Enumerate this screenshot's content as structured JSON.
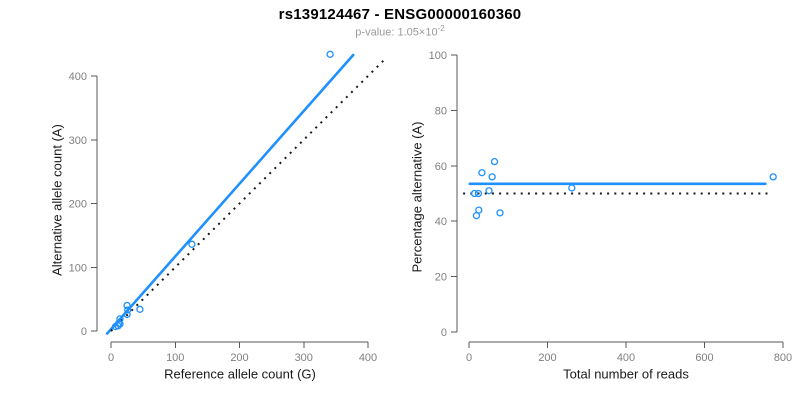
{
  "header": {
    "title": "rs139124467 - ENSG00000160360",
    "subtitle_prefix": "p-value: 1.05×10",
    "subtitle_exponent": "-2"
  },
  "colors": {
    "points": "#1E90FF",
    "fit_line": "#1E90FF",
    "reference_line": "#1a1a1a",
    "axis": "#5a5a5a",
    "tick_text": "#7f7f7f"
  },
  "chart_data": [
    {
      "id": "allele_counts",
      "type": "scatter",
      "xlabel": "Reference allele count (G)",
      "ylabel": "Alternative allele count (A)",
      "xticks": [
        0,
        100,
        200,
        300,
        400
      ],
      "yticks": [
        0,
        100,
        200,
        300,
        400
      ],
      "xlim": [
        0,
        430
      ],
      "ylim": [
        0,
        450
      ],
      "grid": false,
      "points": [
        [
          341,
          434
        ],
        [
          126,
          136
        ],
        [
          45,
          34
        ],
        [
          25,
          40
        ],
        [
          26,
          33
        ],
        [
          25,
          26
        ],
        [
          14,
          19
        ],
        [
          12,
          12
        ],
        [
          7,
          7
        ],
        [
          11,
          8
        ],
        [
          14,
          11
        ]
      ],
      "lines": [
        {
          "name": "fit-line",
          "style": "solid",
          "color": "#1E90FF",
          "x1": -6,
          "y1": -4,
          "x2": 377,
          "y2": 433
        },
        {
          "name": "identity-line",
          "style": "dotted",
          "color": "#1a1a1a",
          "x1": 0,
          "y1": 0,
          "x2": 429,
          "y2": 429
        }
      ]
    },
    {
      "id": "percentage_alternative",
      "type": "scatter",
      "xlabel": "Total number of reads",
      "ylabel": "Percentage alternative (A)",
      "xticks": [
        0,
        200,
        400,
        600,
        800
      ],
      "yticks": [
        0,
        20,
        40,
        60,
        80,
        100
      ],
      "xlim": [
        0,
        800
      ],
      "ylim": [
        0,
        100
      ],
      "grid": false,
      "points": [
        [
          775,
          56
        ],
        [
          262,
          52
        ],
        [
          79,
          43
        ],
        [
          65,
          61.5
        ],
        [
          59,
          56
        ],
        [
          51,
          51
        ],
        [
          33,
          57.5
        ],
        [
          24,
          50
        ],
        [
          14,
          50
        ],
        [
          19,
          42
        ],
        [
          25,
          44
        ]
      ],
      "lines": [
        {
          "name": "mean-percentage-line",
          "style": "solid",
          "color": "#1E90FF",
          "x1": 2,
          "y1": 53.5,
          "x2": 755,
          "y2": 53.5
        },
        {
          "name": "fifty-percent-line",
          "style": "dotted",
          "color": "#1a1a1a",
          "x1": -15,
          "y1": 50,
          "x2": 763,
          "y2": 50
        }
      ]
    }
  ]
}
